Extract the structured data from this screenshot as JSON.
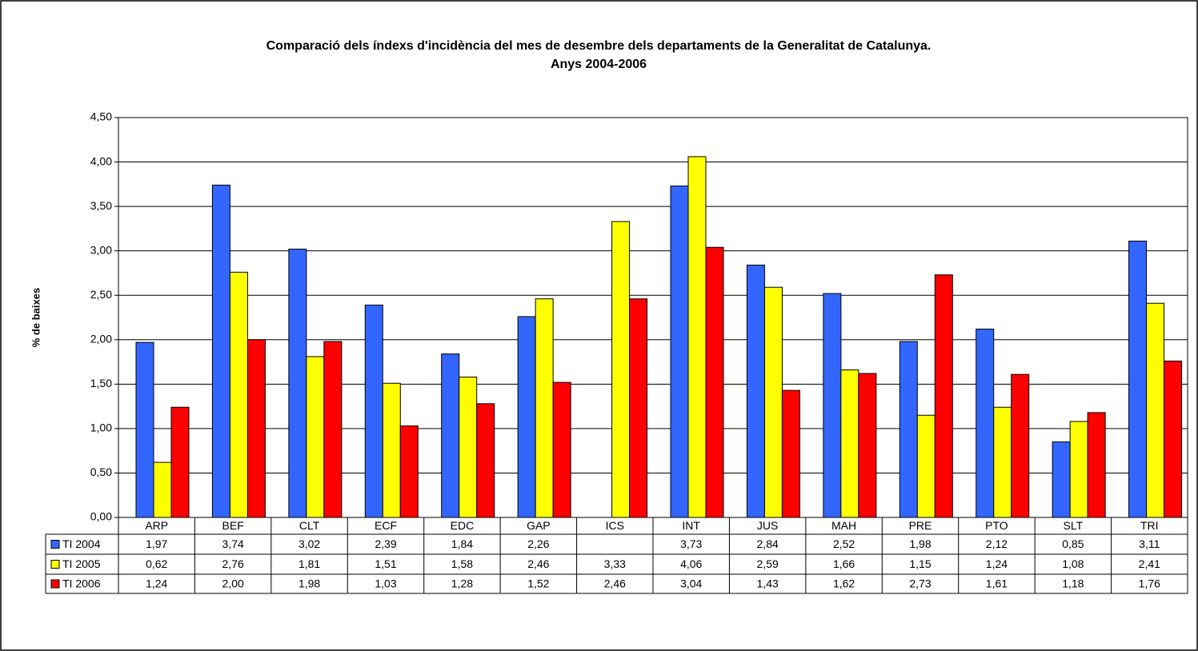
{
  "chart_data": {
    "type": "bar",
    "title": [
      "Comparació dels índexs d'incidència del mes de desembre dels departaments de la Generalitat de Catalunya.",
      "Anys 2004-2006"
    ],
    "y_label": "% de baixes",
    "categories": [
      "ARP",
      "BEF",
      "CLT",
      "ECF",
      "EDC",
      "GAP",
      "ICS",
      "INT",
      "JUS",
      "MAH",
      "PRE",
      "PTO",
      "SLT",
      "TRI"
    ],
    "series": [
      {
        "name": "TI 2004",
        "color": "#3366ff",
        "values": [
          1.97,
          3.74,
          3.02,
          2.39,
          1.84,
          2.26,
          null,
          3.73,
          2.84,
          2.52,
          1.98,
          2.12,
          0.85,
          3.11
        ],
        "value_labels": [
          "1,97",
          "3,74",
          "3,02",
          "2,39",
          "1,84",
          "2,26",
          null,
          "3,73",
          "2,84",
          "2,52",
          "1,98",
          "2,12",
          "0,85",
          "3,11"
        ]
      },
      {
        "name": "TI 2005",
        "color": "#ffff00",
        "values": [
          0.62,
          2.76,
          1.81,
          1.51,
          1.58,
          2.46,
          3.33,
          4.06,
          2.59,
          1.66,
          1.15,
          1.24,
          1.08,
          2.41
        ],
        "value_labels": [
          "0,62",
          "2,76",
          "1,81",
          "1,51",
          "1,58",
          "2,46",
          "3,33",
          "4,06",
          "2,59",
          "1,66",
          "1,15",
          "1,24",
          "1,08",
          "2,41"
        ]
      },
      {
        "name": "TI 2006",
        "color": "#ff0000",
        "values": [
          1.24,
          2.0,
          1.98,
          1.03,
          1.28,
          1.52,
          2.46,
          3.04,
          1.43,
          1.62,
          2.73,
          1.61,
          1.18,
          1.76
        ],
        "value_labels": [
          "1,24",
          "2,00",
          "1,98",
          "1,03",
          "1,28",
          "1,52",
          "2,46",
          "3,04",
          "1,43",
          "1,62",
          "2,73",
          "1,61",
          "1,18",
          "1,76"
        ]
      }
    ],
    "ylim": [
      0,
      4.5
    ],
    "yticks": [
      {
        "value": 0,
        "label": "0,00"
      },
      {
        "value": 0.5,
        "label": "0,50"
      },
      {
        "value": 1,
        "label": "1,00"
      },
      {
        "value": 1.5,
        "label": "1,50"
      },
      {
        "value": 2,
        "label": "2,00"
      },
      {
        "value": 2.5,
        "label": "2,50"
      },
      {
        "value": 3,
        "label": "3,00"
      },
      {
        "value": 3.5,
        "label": "3,50"
      },
      {
        "value": 4,
        "label": "4,00"
      },
      {
        "value": 4.5,
        "label": "4,50"
      }
    ],
    "grid": true
  }
}
